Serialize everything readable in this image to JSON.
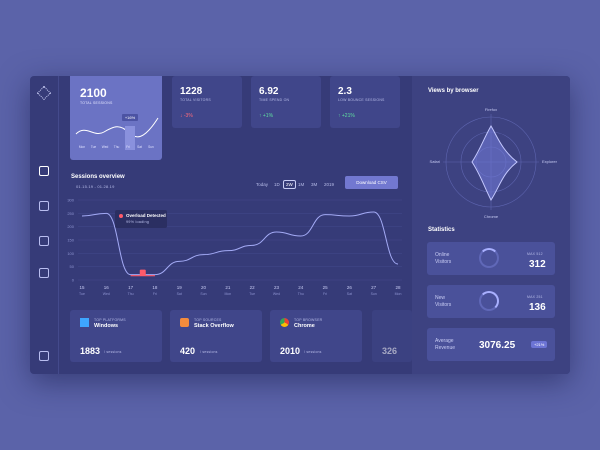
{
  "kpis": [
    {
      "value": "2100",
      "label": "TOTAL SESSIONS"
    },
    {
      "value": "1228",
      "label": "TOTAL VISITORS",
      "change": "↓ -3%"
    },
    {
      "value": "6.92",
      "label": "TIME SPEND ON",
      "change": "↑ +1%"
    },
    {
      "value": "2.3",
      "label": "LOW BOUNCE SESSIONS",
      "change": "↑ +21%"
    }
  ],
  "mini_days": [
    "Mon",
    "Tue",
    "Wed",
    "Thu",
    "Fri",
    "Sat",
    "Sun"
  ],
  "mini_tooltip": "+16%",
  "sessions": {
    "title": "Sessions overview",
    "date_range": "01.15.19 - 01.28.19",
    "ranges": [
      "Today",
      "1D",
      "2W",
      "1M",
      "3M",
      "2019"
    ],
    "download": "Download CSV",
    "chart": {
      "type": "line",
      "categories": [
        "15",
        "16",
        "17",
        "18",
        "19",
        "20",
        "21",
        "22",
        "23",
        "24",
        "25",
        "26",
        "27",
        "28"
      ],
      "days": [
        "Tue",
        "Wed",
        "Thu",
        "Fri",
        "Sat",
        "Sun",
        "Mon",
        "Tue",
        "Wed",
        "Thu",
        "Fri",
        "Sat",
        "Sun",
        "Mon"
      ],
      "values": [
        240,
        250,
        20,
        20,
        70,
        95,
        110,
        130,
        180,
        165,
        245,
        240,
        255,
        60
      ],
      "ylim": [
        0,
        300
      ],
      "yticks": [
        0,
        50,
        100,
        150,
        200,
        250,
        300
      ],
      "color": "#a3aaf5",
      "grid": true
    },
    "alert": {
      "title": "Overload Detected",
      "text": "99% loading"
    }
  },
  "top_cards": [
    {
      "label": "TOP PLATFORMS",
      "name": "Windows",
      "value": "1883",
      "unit": "/ sessions"
    },
    {
      "label": "TOP SOURCES",
      "name": "Stack Overflow",
      "value": "420",
      "unit": "/ sessions"
    },
    {
      "label": "TOP BROWSER",
      "name": "Chrome",
      "value": "2010",
      "unit": "/ sessions"
    }
  ],
  "partial_value": "326",
  "browser_views": {
    "title": "Views by browser",
    "labels": [
      "Firefox",
      "Explorer",
      "Chrome",
      "Safari"
    ]
  },
  "statistics": {
    "title": "Statistics",
    "items": [
      {
        "label": "Online Visitors",
        "max": "MAX 512",
        "value": "312"
      },
      {
        "label": "New Visitors",
        "max": "MAX 251",
        "value": "136"
      },
      {
        "label": "Average Revenue",
        "value": "3076.25",
        "badge": "+21%"
      }
    ]
  }
}
